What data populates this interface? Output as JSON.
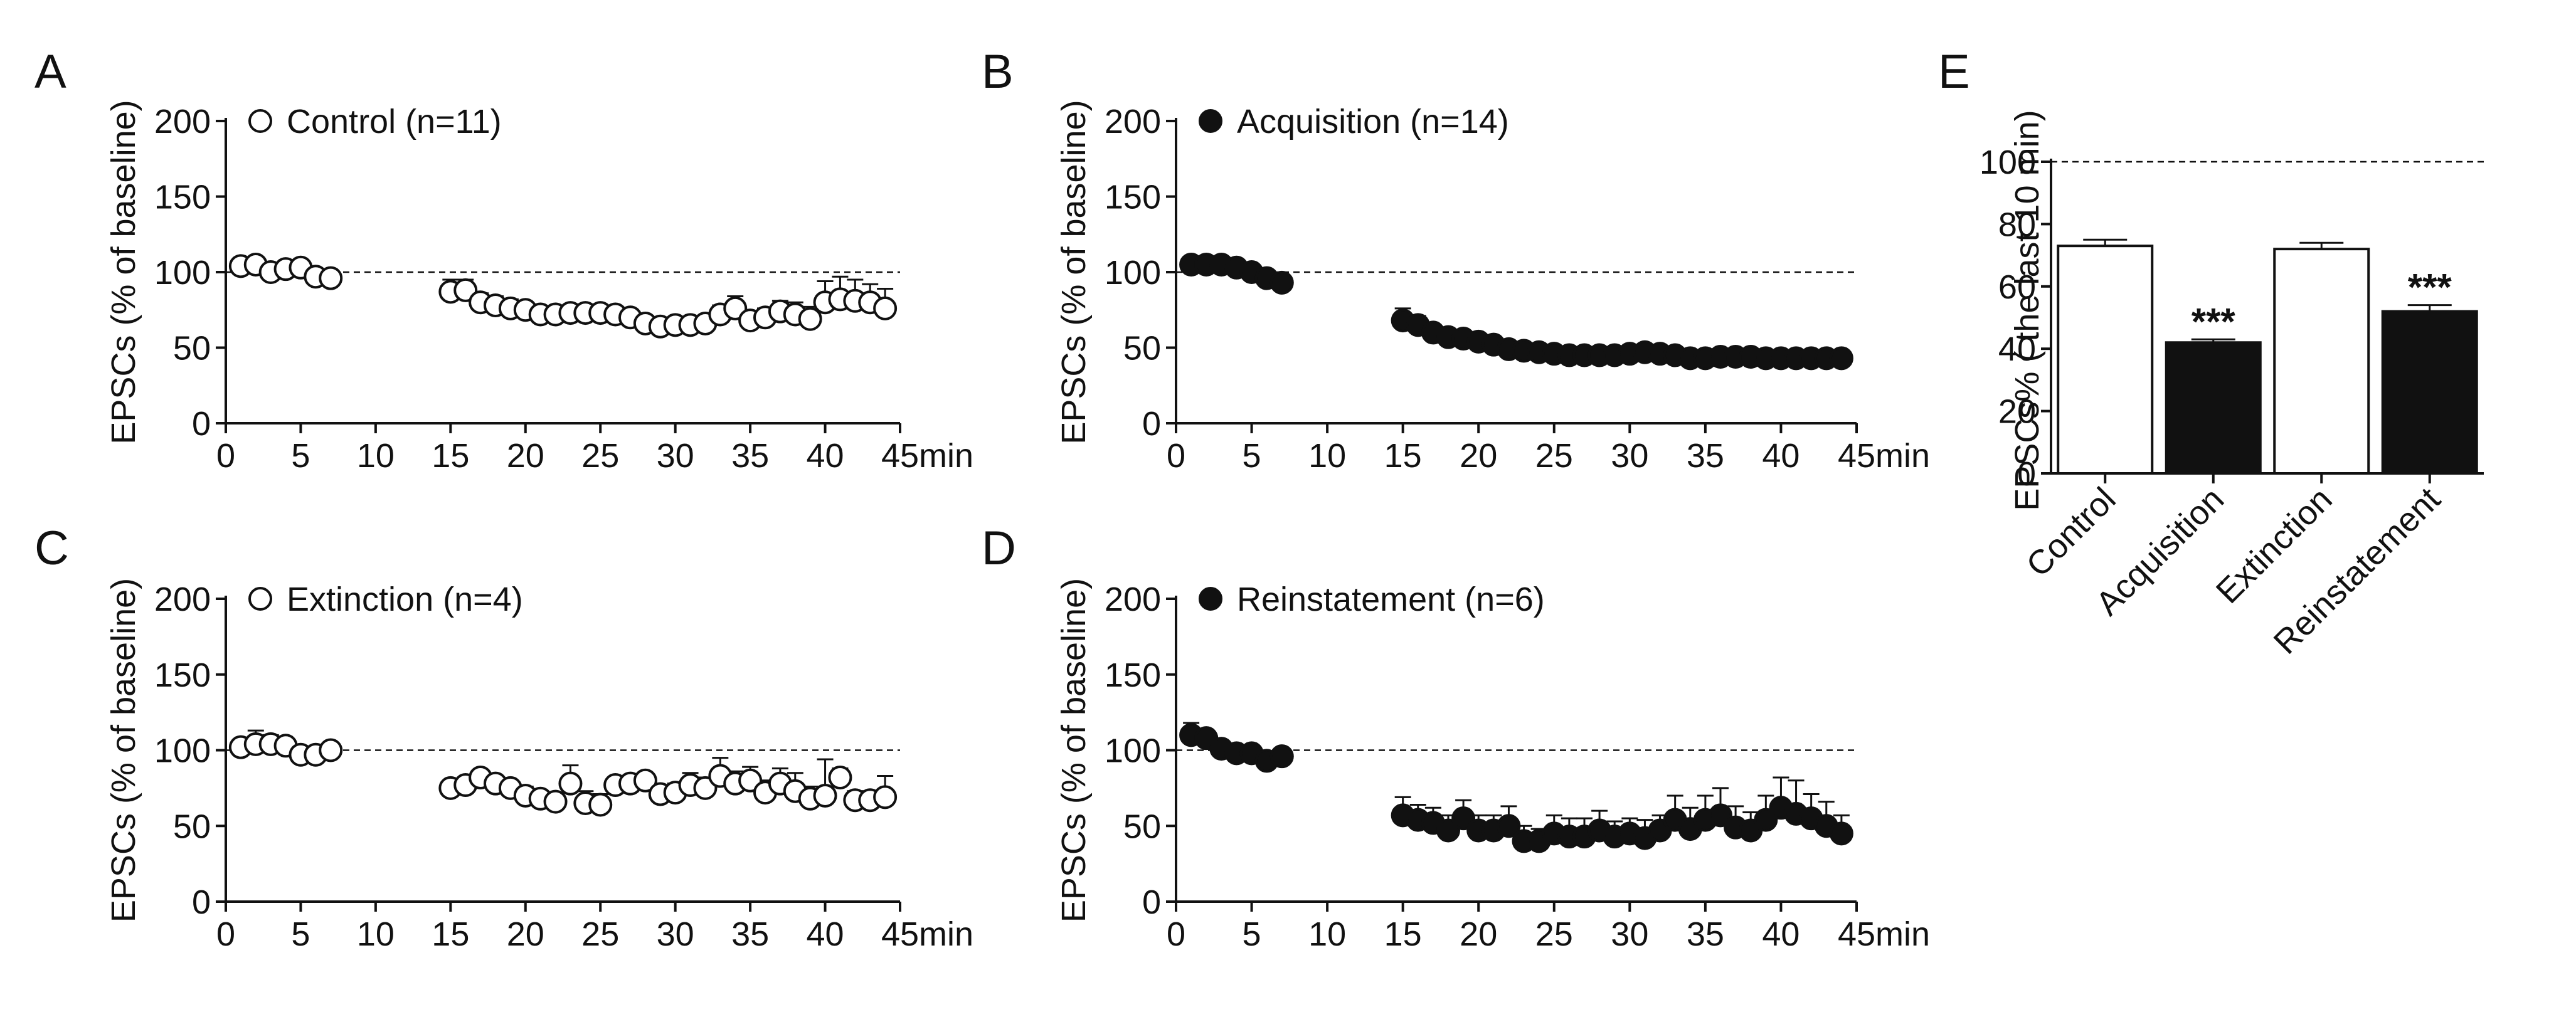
{
  "colors": {
    "ink": "#111111",
    "open_fill": "#ffffff",
    "filled": "#111111"
  },
  "chart_data": [
    {
      "id": "A",
      "type": "scatter",
      "panel_letter": "A",
      "legend": "Control (n=11)",
      "marker": "open",
      "ylabel": "EPSCs (% of baseline)",
      "xunit": "min",
      "xlim": [
        0,
        45
      ],
      "ylim": [
        0,
        200
      ],
      "xticks": [
        "0",
        "5",
        "10",
        "15",
        "20",
        "25",
        "30",
        "35",
        "40",
        "45"
      ],
      "yticks": [
        "0",
        "50",
        "100",
        "150",
        "200"
      ],
      "reference_line": 100,
      "x": [
        1,
        2,
        3,
        4,
        5,
        6,
        7,
        15,
        16,
        17,
        18,
        19,
        20,
        21,
        22,
        23,
        24,
        25,
        26,
        27,
        28,
        29,
        30,
        31,
        32,
        33,
        34,
        35,
        36,
        37,
        38,
        39,
        40,
        41,
        42,
        43,
        44
      ],
      "y": [
        104,
        105,
        100,
        102,
        103,
        97,
        96,
        87,
        88,
        80,
        78,
        76,
        75,
        72,
        72,
        73,
        73,
        73,
        72,
        70,
        66,
        64,
        65,
        65,
        66,
        72,
        76,
        68,
        70,
        74,
        72,
        69,
        80,
        82,
        81,
        80,
        76
      ],
      "err": [
        3,
        3,
        3,
        3,
        3,
        3,
        3,
        8,
        7,
        6,
        6,
        6,
        5,
        5,
        5,
        5,
        5,
        5,
        5,
        5,
        5,
        4,
        4,
        4,
        4,
        6,
        8,
        6,
        6,
        7,
        8,
        8,
        14,
        15,
        14,
        12,
        13
      ]
    },
    {
      "id": "B",
      "type": "scatter",
      "panel_letter": "B",
      "legend": "Acquisition (n=14)",
      "marker": "filled",
      "ylabel": "EPSCs (% of baseline)",
      "xunit": "min",
      "xlim": [
        0,
        45
      ],
      "ylim": [
        0,
        200
      ],
      "xticks": [
        "0",
        "5",
        "10",
        "15",
        "20",
        "25",
        "30",
        "35",
        "40",
        "45"
      ],
      "yticks": [
        "0",
        "50",
        "100",
        "150",
        "200"
      ],
      "reference_line": 100,
      "x": [
        1,
        2,
        3,
        4,
        5,
        6,
        7,
        15,
        16,
        17,
        18,
        19,
        20,
        21,
        22,
        23,
        24,
        25,
        26,
        27,
        28,
        29,
        30,
        31,
        32,
        33,
        34,
        35,
        36,
        37,
        38,
        39,
        40,
        41,
        42,
        43,
        44
      ],
      "y": [
        105,
        105,
        105,
        103,
        100,
        96,
        93,
        68,
        65,
        60,
        57,
        56,
        54,
        52,
        49,
        48,
        47,
        46,
        45,
        45,
        45,
        45,
        46,
        47,
        46,
        45,
        43,
        43,
        44,
        44,
        44,
        43,
        43,
        43,
        43,
        43,
        43
      ],
      "err": [
        2,
        2,
        2,
        2,
        2,
        2,
        2,
        8,
        6,
        5,
        4,
        4,
        4,
        3,
        3,
        3,
        3,
        3,
        3,
        3,
        3,
        3,
        3,
        3,
        3,
        3,
        3,
        3,
        3,
        3,
        3,
        3,
        3,
        3,
        3,
        3,
        3
      ]
    },
    {
      "id": "C",
      "type": "scatter",
      "panel_letter": "C",
      "legend": "Extinction (n=4)",
      "marker": "open",
      "ylabel": "EPSCs (% of baseline)",
      "xunit": "min",
      "xlim": [
        0,
        45
      ],
      "ylim": [
        0,
        200
      ],
      "xticks": [
        "0",
        "5",
        "10",
        "15",
        "20",
        "25",
        "30",
        "35",
        "40",
        "45"
      ],
      "yticks": [
        "0",
        "50",
        "100",
        "150",
        "200"
      ],
      "reference_line": 100,
      "x": [
        1,
        2,
        3,
        4,
        5,
        6,
        7,
        15,
        16,
        17,
        18,
        19,
        20,
        21,
        22,
        23,
        24,
        25,
        26,
        27,
        28,
        29,
        30,
        31,
        32,
        33,
        34,
        35,
        36,
        37,
        38,
        39,
        40,
        41,
        42,
        43,
        44
      ],
      "y": [
        102,
        104,
        104,
        103,
        97,
        97,
        100,
        75,
        77,
        82,
        78,
        75,
        70,
        68,
        66,
        78,
        65,
        64,
        77,
        78,
        80,
        71,
        72,
        77,
        75,
        83,
        78,
        80,
        72,
        78,
        73,
        68,
        70,
        82,
        67,
        67,
        69
      ],
      "err": [
        5,
        9,
        6,
        5,
        4,
        4,
        3,
        4,
        4,
        4,
        4,
        4,
        6,
        5,
        5,
        12,
        8,
        7,
        5,
        5,
        5,
        6,
        6,
        8,
        7,
        12,
        8,
        9,
        8,
        10,
        12,
        8,
        24,
        6,
        6,
        6,
        14
      ]
    },
    {
      "id": "D",
      "type": "scatter",
      "panel_letter": "D",
      "legend": "Reinstatement (n=6)",
      "marker": "filled",
      "ylabel": "EPSCs (% of baseline)",
      "xunit": "min",
      "xlim": [
        0,
        45
      ],
      "ylim": [
        0,
        200
      ],
      "xticks": [
        "0",
        "5",
        "10",
        "15",
        "20",
        "25",
        "30",
        "35",
        "40",
        "45"
      ],
      "yticks": [
        "0",
        "50",
        "100",
        "150",
        "200"
      ],
      "reference_line": 100,
      "x": [
        1,
        2,
        3,
        4,
        5,
        6,
        7,
        15,
        16,
        17,
        18,
        19,
        20,
        21,
        22,
        23,
        24,
        25,
        26,
        27,
        28,
        29,
        30,
        31,
        32,
        33,
        34,
        35,
        36,
        37,
        38,
        39,
        40,
        41,
        42,
        43,
        44
      ],
      "y": [
        110,
        108,
        101,
        98,
        98,
        93,
        96,
        57,
        54,
        52,
        47,
        55,
        47,
        47,
        50,
        40,
        40,
        45,
        43,
        43,
        47,
        43,
        45,
        42,
        47,
        54,
        48,
        54,
        57,
        49,
        47,
        54,
        62,
        58,
        55,
        50,
        45
      ],
      "err": [
        8,
        5,
        3,
        3,
        3,
        3,
        3,
        12,
        10,
        10,
        10,
        12,
        10,
        10,
        13,
        10,
        8,
        12,
        12,
        12,
        13,
        10,
        10,
        12,
        10,
        16,
        14,
        16,
        18,
        14,
        12,
        16,
        20,
        22,
        16,
        16,
        12
      ]
    },
    {
      "id": "E",
      "type": "bar",
      "panel_letter": "E",
      "ylabel": "EPSCs% ( the last 10 min)",
      "categories": [
        "Control",
        "Acquisition",
        "Extinction",
        "Reinstatement"
      ],
      "values": [
        73,
        42,
        72,
        52
      ],
      "err": [
        2,
        1,
        2,
        2
      ],
      "fills": [
        "open",
        "filled",
        "open",
        "filled"
      ],
      "significance": [
        "",
        "***",
        "",
        "***"
      ],
      "ylim": [
        0,
        100
      ],
      "yticks": [
        "0",
        "20",
        "40",
        "60",
        "80",
        "100"
      ],
      "reference_line": 100
    }
  ]
}
